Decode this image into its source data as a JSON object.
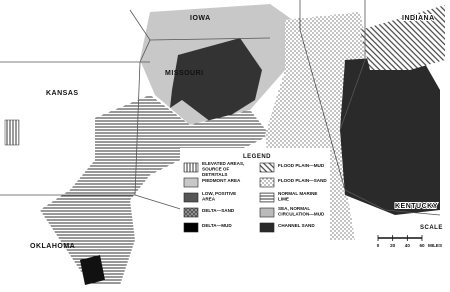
{
  "states": [
    "IOWA",
    "INDIANA",
    "MISSOURI",
    "KANSAS",
    "OKLAHOMA",
    "KENTUCKY"
  ],
  "legend": {
    "title": "LEGEND",
    "items": [
      "ELEVATED AREAS, SOURCE OF DETRITALS",
      "PIEDMONT AREA",
      "LOW, POSITIVE AREA",
      "DELTA—SAND",
      "DELTA—MUD",
      "FLOOD PLAIN—MUD",
      "FLOOD PLAIN—SAND",
      "NORMAL MARINE LIME",
      "SEA, NORMAL CIRCULATION—MUD",
      "CHANNEL SAND"
    ]
  },
  "scale": {
    "title": "SCALE",
    "ticks": [
      0,
      20,
      40,
      60
    ],
    "unit": "MILES"
  }
}
